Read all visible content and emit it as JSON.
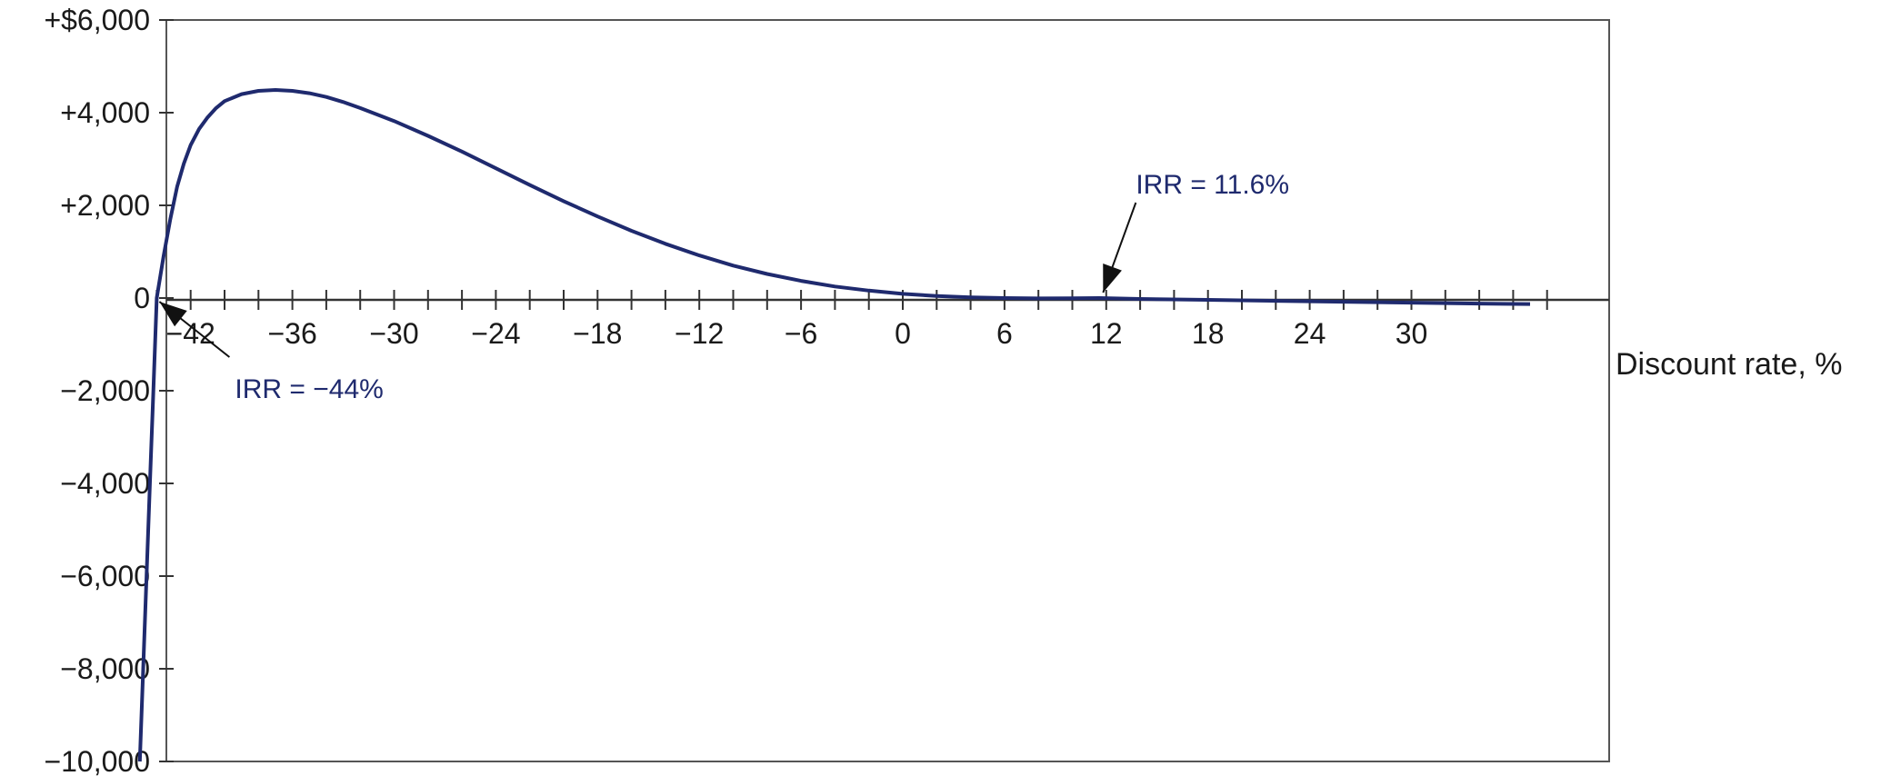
{
  "chart_data": {
    "type": "line",
    "title": "",
    "xlabel": "Discount rate, %",
    "ylabel": "",
    "xlim": [
      -46,
      39
    ],
    "ylim": [
      -10000,
      6000
    ],
    "grid": false,
    "line_color": "#1f2a6e",
    "x_tick_labels": [
      {
        "value": -42,
        "label": "−42"
      },
      {
        "value": -36,
        "label": "−36"
      },
      {
        "value": -30,
        "label": "−30"
      },
      {
        "value": -24,
        "label": "−24"
      },
      {
        "value": -18,
        "label": "−18"
      },
      {
        "value": -12,
        "label": "−12"
      },
      {
        "value": -6,
        "label": "−6"
      },
      {
        "value": 0,
        "label": "0"
      },
      {
        "value": 6,
        "label": "6"
      },
      {
        "value": 12,
        "label": "12"
      },
      {
        "value": 18,
        "label": "18"
      },
      {
        "value": 24,
        "label": "24"
      },
      {
        "value": 30,
        "label": "30"
      }
    ],
    "y_tick_labels": [
      {
        "value": 6000,
        "label": "+$6,000"
      },
      {
        "value": 4000,
        "label": "+4,000"
      },
      {
        "value": 2000,
        "label": "+2,000"
      },
      {
        "value": 0,
        "label": "0"
      },
      {
        "value": -2000,
        "label": "−2,000"
      },
      {
        "value": -4000,
        "label": "−4,000"
      },
      {
        "value": -6000,
        "label": "−6,000"
      },
      {
        "value": -8000,
        "label": "−8,000"
      },
      {
        "value": -10000,
        "label": "−10,000"
      }
    ],
    "series": [
      {
        "x": [
          -45,
          -44.8,
          -44.6,
          -44.4,
          -44.2,
          -44,
          -43.6,
          -43.2,
          -42.8,
          -42.4,
          -42,
          -41.5,
          -41,
          -40.5,
          -40,
          -39,
          -38,
          -37,
          -36,
          -35,
          -34,
          -33,
          -32,
          -30,
          -28,
          -26,
          -24,
          -22,
          -20,
          -18,
          -16,
          -14,
          -12,
          -10,
          -8,
          -6,
          -4,
          -2,
          0,
          2,
          4,
          6,
          8,
          10,
          11.6,
          14,
          18,
          22,
          26,
          30,
          34,
          37
        ],
        "values": [
          -10000,
          -8000,
          -6000,
          -4000,
          -2000,
          0,
          900,
          1700,
          2400,
          2900,
          3300,
          3650,
          3900,
          4100,
          4250,
          4400,
          4470,
          4490,
          4470,
          4420,
          4340,
          4230,
          4100,
          3820,
          3500,
          3160,
          2800,
          2440,
          2090,
          1760,
          1450,
          1170,
          920,
          700,
          520,
          370,
          250,
          160,
          90,
          45,
          15,
          0,
          -8,
          -5,
          0,
          -20,
          -40,
          -60,
          -80,
          -100,
          -120,
          -130
        ]
      }
    ],
    "annotations": [
      {
        "text": "IRR = −44%",
        "x": -44,
        "y": 0
      },
      {
        "text": "IRR = 11.6%",
        "x": 11.6,
        "y": 0
      }
    ]
  }
}
